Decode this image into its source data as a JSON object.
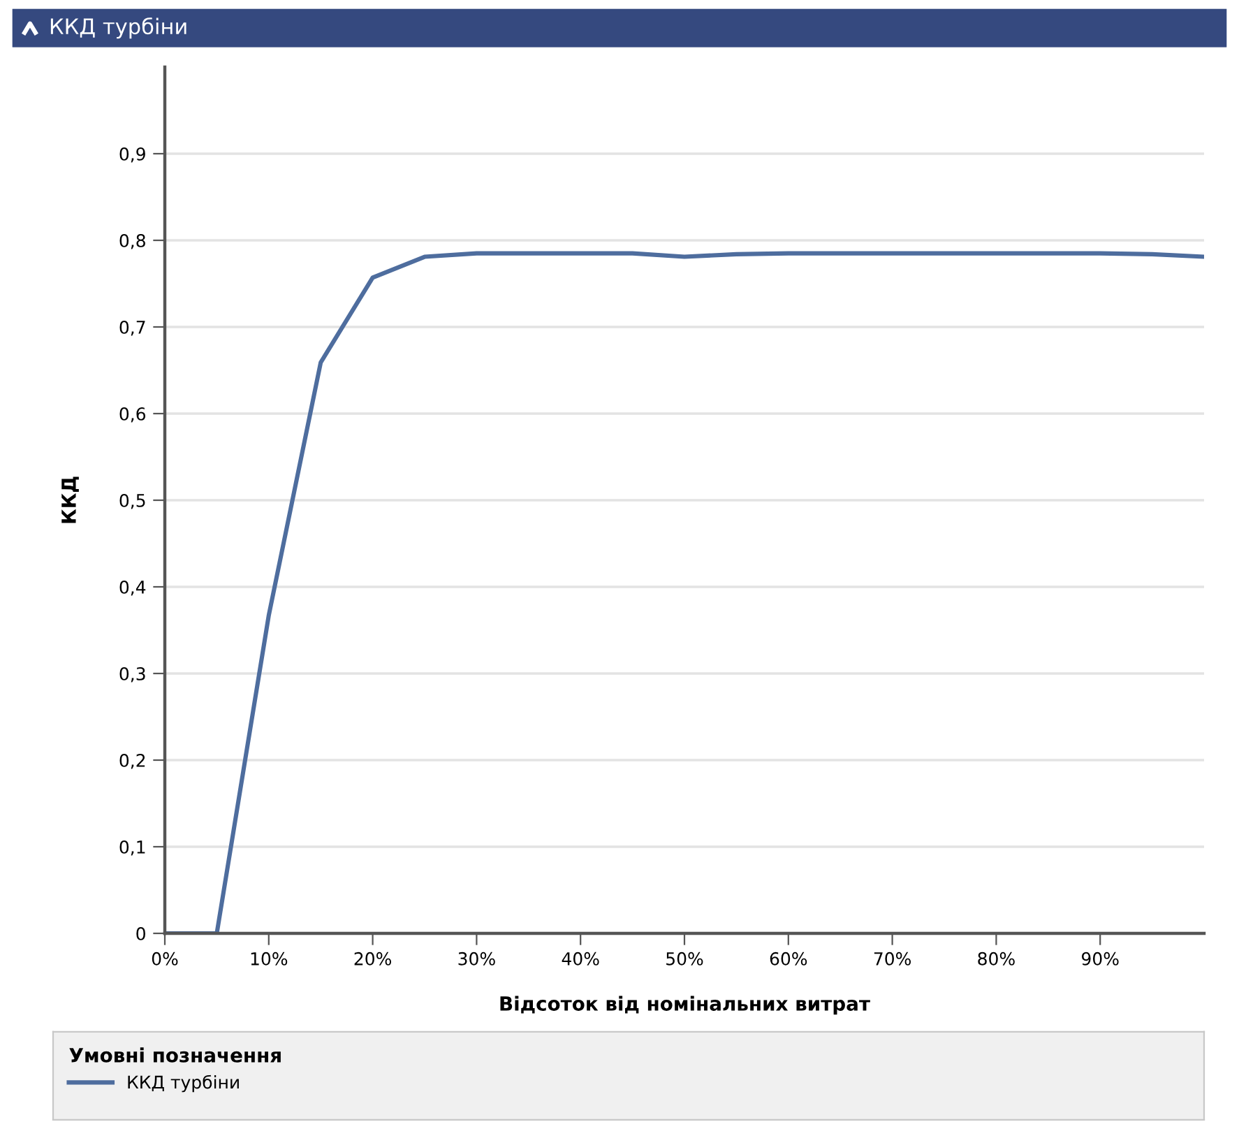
{
  "chart_data": {
    "type": "line",
    "title": "ККД турбіни",
    "xlabel": "Відсоток від номінальних витрат",
    "ylabel": "ККД",
    "legend_title": "Умовні позначення",
    "x": [
      0,
      5,
      10,
      15,
      20,
      25,
      30,
      35,
      40,
      45,
      50,
      55,
      60,
      65,
      70,
      75,
      80,
      85,
      90,
      95,
      100
    ],
    "series": [
      {
        "name": "ККД турбіни",
        "color": "#4e6d9e",
        "values": [
          0,
          0,
          0.367,
          0.659,
          0.757,
          0.781,
          0.785,
          0.785,
          0.785,
          0.785,
          0.781,
          0.784,
          0.785,
          0.785,
          0.785,
          0.785,
          0.785,
          0.785,
          0.785,
          0.784,
          0.781
        ]
      }
    ],
    "xlim": [
      0,
      100
    ],
    "ylim": [
      0,
      1
    ],
    "xticks": [
      {
        "value": 0,
        "label": "0%"
      },
      {
        "value": 10,
        "label": "10%"
      },
      {
        "value": 20,
        "label": "20%"
      },
      {
        "value": 30,
        "label": "30%"
      },
      {
        "value": 40,
        "label": "40%"
      },
      {
        "value": 50,
        "label": "50%"
      },
      {
        "value": 60,
        "label": "60%"
      },
      {
        "value": 70,
        "label": "70%"
      },
      {
        "value": 80,
        "label": "80%"
      },
      {
        "value": 90,
        "label": "90%"
      }
    ],
    "yticks": [
      0,
      {
        "value": 0.1,
        "label": "0,1"
      },
      {
        "value": 0.2,
        "label": "0,2"
      },
      {
        "value": 0.3,
        "label": "0,3"
      },
      {
        "value": 0.4,
        "label": "0,4"
      },
      {
        "value": 0.5,
        "label": "0,5"
      },
      {
        "value": 0.6,
        "label": "0,6"
      },
      {
        "value": 0.7,
        "label": "0,7"
      },
      {
        "value": 0.8,
        "label": "0,8"
      },
      {
        "value": 0.9,
        "label": "0,9"
      }
    ],
    "grid": "y",
    "legend": "bottom",
    "marker": "none",
    "line_style": "solid"
  }
}
